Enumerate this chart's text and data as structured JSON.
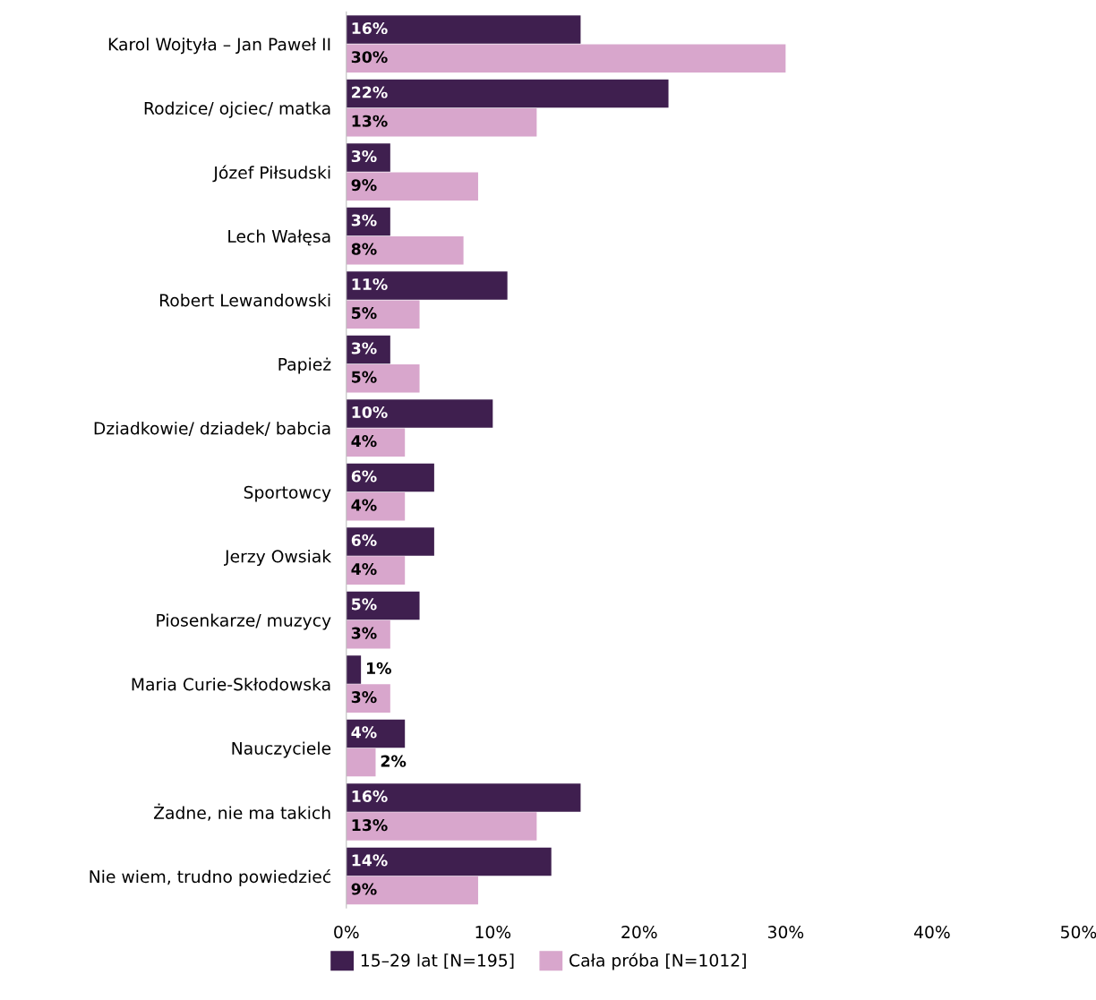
{
  "chart_data": {
    "type": "bar",
    "orientation": "horizontal",
    "categories": [
      "Karol Wojtyła – Jan Paweł II",
      "Rodzice/ ojciec/ matka",
      "Józef Piłsudski",
      "Lech Wałęsa",
      "Robert Lewandowski",
      "Papież",
      "Dziadkowie/ dziadek/ babcia",
      "Sportowcy",
      "Jerzy Owsiak",
      "Piosenkarze/ muzycy",
      "Maria Curie-Skłodowska",
      "Nauczyciele",
      "Żadne, nie ma takich",
      "Nie wiem, trudno powiedzieć"
    ],
    "series": [
      {
        "name": "15–29 lat [N=195]",
        "color": "#3f1f4f",
        "values": [
          16,
          22,
          3,
          3,
          11,
          3,
          10,
          6,
          6,
          5,
          1,
          4,
          16,
          14
        ],
        "value_labels": [
          "16%",
          "22%",
          "3%",
          "3%",
          "11%",
          "3%",
          "10%",
          "6%",
          "6%",
          "5%",
          "1%",
          "4%",
          "16%",
          "14%"
        ]
      },
      {
        "name": "Cała próba [N=1012]",
        "color": "#d8a6cc",
        "values": [
          30,
          13,
          9,
          8,
          5,
          5,
          4,
          4,
          4,
          3,
          3,
          2,
          13,
          9
        ],
        "value_labels": [
          "30%",
          "13%",
          "9%",
          "8%",
          "5%",
          "5%",
          "4%",
          "4%",
          "4%",
          "3%",
          "3%",
          "2%",
          "13%",
          "9%"
        ]
      }
    ],
    "xlim": [
      0,
      50
    ],
    "xticks": [
      {
        "value": 0,
        "label": "0%"
      },
      {
        "value": 10,
        "label": "10%"
      },
      {
        "value": 20,
        "label": "20%"
      },
      {
        "value": 30,
        "label": "30%"
      },
      {
        "value": 40,
        "label": "40%"
      },
      {
        "value": 50,
        "label": "50%"
      }
    ],
    "grid": false,
    "legend": "bottom"
  }
}
